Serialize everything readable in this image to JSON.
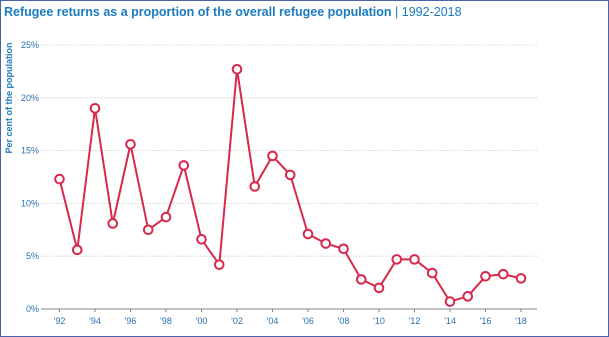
{
  "title": {
    "main": "Refugee returns as a proportion of the overall refugee population",
    "separator": "|",
    "years": "1992-2018"
  },
  "chart_data": {
    "type": "line",
    "title": "Refugee returns as a proportion of the overall refugee population | 1992-2018",
    "xlabel": "",
    "ylabel": "Per cent of the population",
    "x": [
      1992,
      1993,
      1994,
      1995,
      1996,
      1997,
      1998,
      1999,
      2000,
      2001,
      2002,
      2003,
      2004,
      2005,
      2006,
      2007,
      2008,
      2009,
      2010,
      2011,
      2012,
      2013,
      2014,
      2015,
      2016,
      2017,
      2018
    ],
    "series": [
      {
        "values": [
          12.3,
          5.6,
          19.0,
          8.1,
          15.6,
          7.5,
          8.7,
          13.6,
          6.6,
          4.2,
          22.7,
          11.6,
          14.5,
          12.7,
          7.1,
          6.2,
          5.7,
          2.8,
          2.0,
          4.7,
          4.7,
          3.4,
          0.7,
          1.2,
          3.1,
          3.3,
          2.9
        ],
        "color": "#d8284c"
      }
    ],
    "ylim": [
      0,
      25
    ],
    "yticks": [
      "0%",
      "5%",
      "10%",
      "15%",
      "20%",
      "25%"
    ],
    "xticks": [
      "'92",
      "'94",
      "'96",
      "'98",
      "'00",
      "'02",
      "'04",
      "'06",
      "'08",
      "'10",
      "'12",
      "'14",
      "'16",
      "'18"
    ],
    "grid": true,
    "legend": "none",
    "colors": {
      "line": "#d8284c",
      "text": "#1a7bbf",
      "grid": "#c9c9c9"
    }
  }
}
